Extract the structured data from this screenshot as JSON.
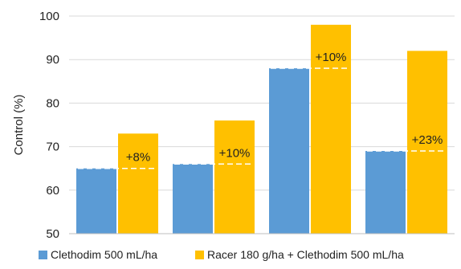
{
  "chart_data": {
    "type": "bar",
    "title": "",
    "xlabel": "",
    "ylabel": "Control (%)",
    "ylim": [
      50,
      100
    ],
    "yticks": [
      50,
      60,
      70,
      80,
      90,
      100
    ],
    "grid": true,
    "legend_position": "bottom",
    "categories": [
      "",
      "",
      "",
      ""
    ],
    "series": [
      {
        "name": "Clethodim 500 mL/ha",
        "color": "#5b9bd5",
        "values": [
          65,
          66,
          88,
          69
        ]
      },
      {
        "name": "Racer 180 g/ha + Clethodim 500 mL/ha",
        "color": "#ffc000",
        "values": [
          73,
          76,
          98,
          92
        ]
      }
    ],
    "annotations": [
      "+8%",
      "+10%",
      "+10%",
      "+23%"
    ],
    "reference_line_color": "#ffffff"
  }
}
